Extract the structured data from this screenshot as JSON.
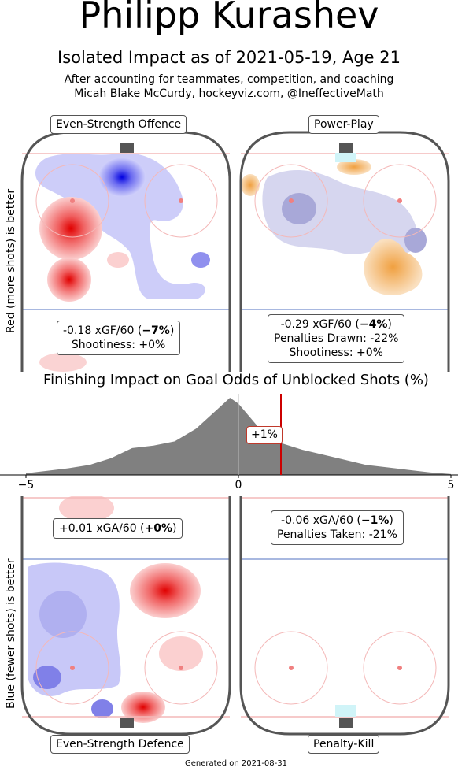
{
  "title": "Philipp Kurashev",
  "subtitle": "Isolated Impact as of 2021-05-19, Age 21",
  "note_line1": "After accounting for teammates, competition, and coaching",
  "note_line2": "Micah Blake McCurdy, hockeyviz.com, @IneffectiveMath",
  "ylabel_top": "Red (more shots) is better",
  "ylabel_bottom": "Blue (fewer shots) is better",
  "panels": {
    "es_offence": {
      "label": "Even-Strength Offence",
      "line1": "-0.18 xGF/60 (",
      "line1_bold": "−7%",
      "line1_end": ")",
      "line2": "Shootiness: +0%"
    },
    "power_play": {
      "label": "Power-Play",
      "line1": "-0.29 xGF/60 (",
      "line1_bold": "−4%",
      "line1_end": ")",
      "line2": "Penalties Drawn: -22%",
      "line3": "Shootiness: +0%"
    },
    "es_defence": {
      "label": "Even-Strength Defence",
      "line1": "+0.01 xGA/60 (",
      "line1_bold": "+0%",
      "line1_end": ")"
    },
    "penalty_kill": {
      "label": "Penalty-Kill",
      "line1": "-0.06 xGA/60 (",
      "line1_bold": "−1%",
      "line1_end": ")",
      "line2": "Penalties Taken: -21%"
    }
  },
  "chart_data": {
    "type": "area",
    "title": "Finishing Impact on Goal Odds of Unblocked Shots (%)",
    "xlim": [
      -5,
      5
    ],
    "xticks": [
      "−5",
      "0",
      "5"
    ],
    "x": [
      -5,
      -4.5,
      -4,
      -3.5,
      -3,
      -2.5,
      -2,
      -1.5,
      -1,
      -0.5,
      -0.2,
      0,
      0.5,
      1,
      1.5,
      2,
      2.5,
      3,
      3.5,
      4,
      4.5,
      5
    ],
    "density": [
      0.02,
      0.05,
      0.08,
      0.12,
      0.2,
      0.32,
      0.35,
      0.4,
      0.55,
      0.78,
      0.92,
      0.85,
      0.55,
      0.38,
      0.3,
      0.24,
      0.18,
      0.12,
      0.09,
      0.06,
      0.03,
      0.01
    ],
    "marker": {
      "x": 1,
      "label": "+1%"
    },
    "marker_color": "#cc0000",
    "fill_color": "#808080"
  },
  "footer": "Generated on 2021-08-31"
}
